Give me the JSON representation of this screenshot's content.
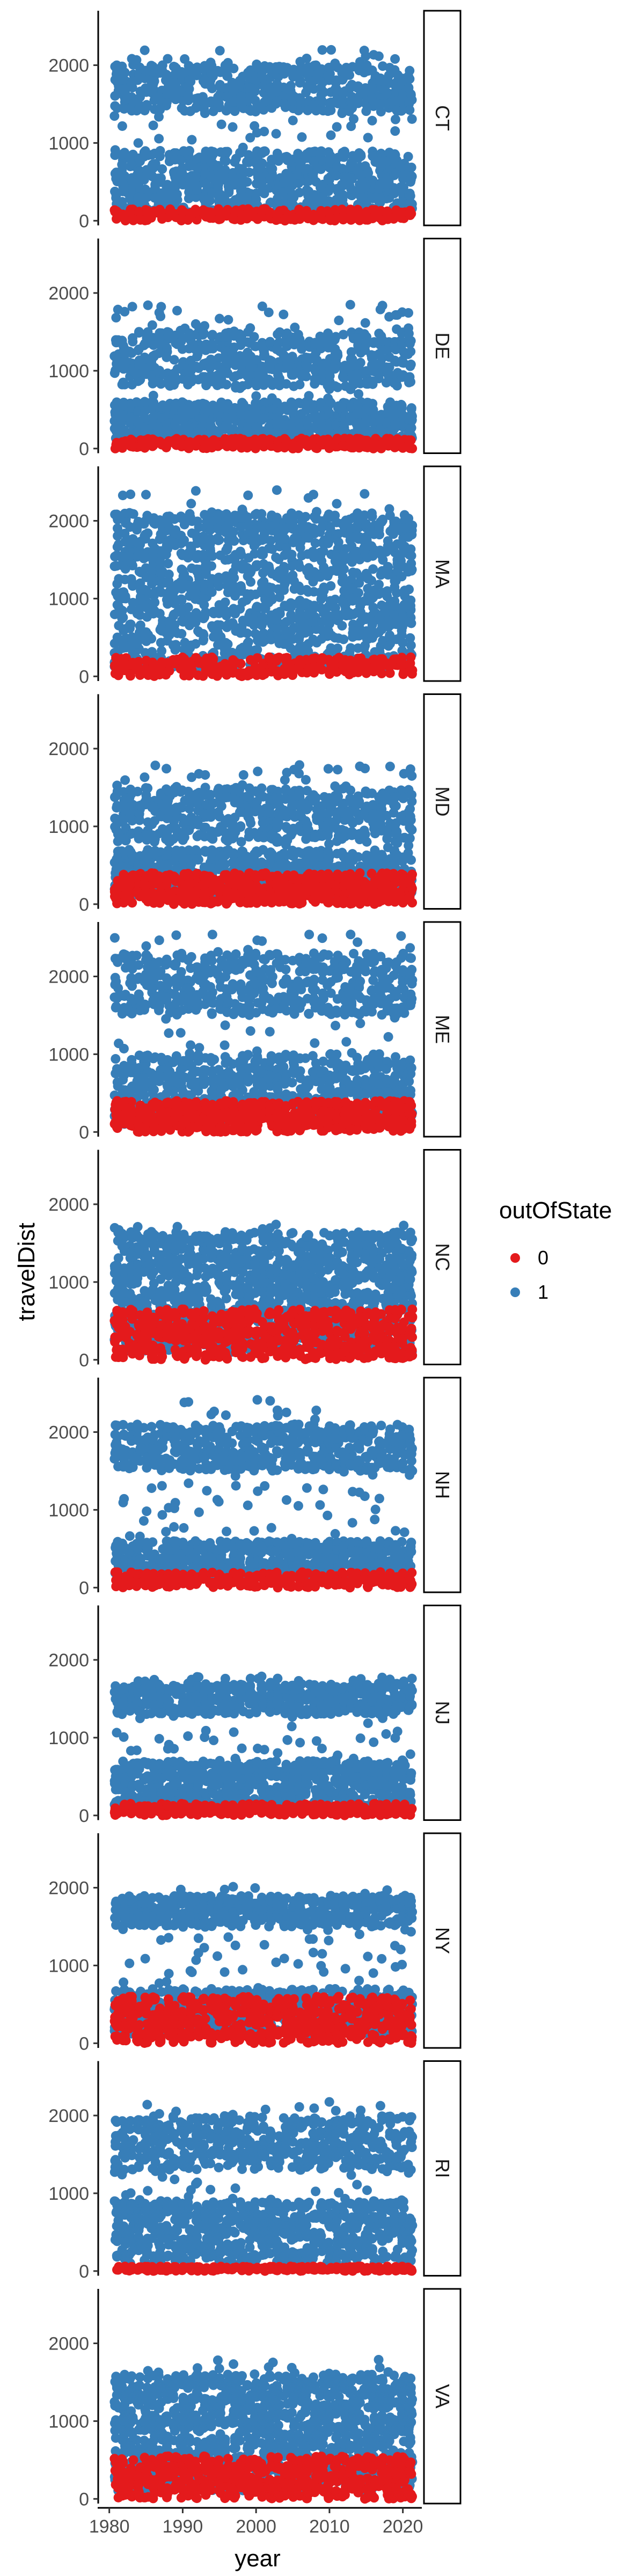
{
  "chart_data": {
    "type": "scatter",
    "xlabel": "year",
    "ylabel": "travelDist",
    "xlim": [
      1979,
      2022
    ],
    "ylim": [
      -60,
      2700
    ],
    "x_ticks": [
      1980,
      1990,
      2000,
      2010,
      2020
    ],
    "y_ticks": [
      0,
      1000,
      2000
    ],
    "grid": false,
    "legend": {
      "title": "outOfState",
      "placement": "right",
      "entries": [
        {
          "label": "0",
          "color": "#E41A1C"
        },
        {
          "label": "1",
          "color": "#377EB8"
        }
      ]
    },
    "facets": [
      {
        "label": "CT",
        "in_state_max": 150,
        "out_state_bands": [
          [
            100,
            900
          ],
          [
            1400,
            2000
          ]
        ],
        "out_state_max": 2200
      },
      {
        "label": "DE",
        "in_state_max": 130,
        "out_state_bands": [
          [
            100,
            600
          ],
          [
            800,
            1500
          ]
        ],
        "out_state_max": 1850
      },
      {
        "label": "MA",
        "in_state_max": 250,
        "out_state_bands": [
          [
            100,
            1300
          ],
          [
            1300,
            2100
          ]
        ],
        "out_state_max": 2450
      },
      {
        "label": "MD",
        "in_state_max": 400,
        "out_state_bands": [
          [
            100,
            700
          ],
          [
            800,
            1500
          ]
        ],
        "out_state_max": 1800
      },
      {
        "label": "ME",
        "in_state_max": 400,
        "out_state_bands": [
          [
            100,
            1000
          ],
          [
            1500,
            2300
          ]
        ],
        "out_state_max": 2550
      },
      {
        "label": "NC",
        "in_state_max": 650,
        "out_state_bands": [
          [
            100,
            1000
          ],
          [
            1000,
            1650
          ]
        ],
        "out_state_max": 1750
      },
      {
        "label": "NH",
        "in_state_max": 200,
        "out_state_bands": [
          [
            100,
            600
          ],
          [
            1500,
            2100
          ]
        ],
        "out_state_max": 2450
      },
      {
        "label": "NJ",
        "in_state_max": 150,
        "out_state_bands": [
          [
            100,
            700
          ],
          [
            1300,
            1700
          ]
        ],
        "out_state_max": 1800
      },
      {
        "label": "NY",
        "in_state_max": 600,
        "out_state_bands": [
          [
            100,
            700
          ],
          [
            1500,
            1900
          ]
        ],
        "out_state_max": 2050
      },
      {
        "label": "RI",
        "in_state_max": 60,
        "out_state_bands": [
          [
            100,
            900
          ],
          [
            1300,
            2000
          ]
        ],
        "out_state_max": 2200
      },
      {
        "label": "VA",
        "in_state_max": 550,
        "out_state_bands": [
          [
            100,
            1000
          ],
          [
            1000,
            1600
          ]
        ],
        "out_state_max": 1800
      }
    ]
  }
}
